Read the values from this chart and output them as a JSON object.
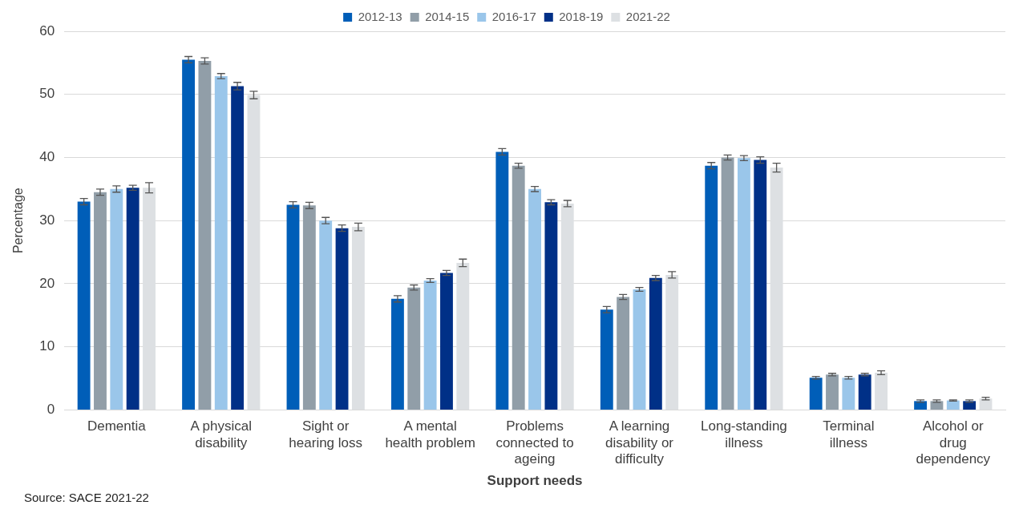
{
  "chart_data": {
    "type": "bar",
    "categories": [
      "Dementia",
      "A physical disability",
      "Sight or hearing loss",
      "A mental health problem",
      "Problems connected to ageing",
      "A learning disability or difficulty",
      "Long-standing illness",
      "Terminal illness",
      "Alcohol or drug dependency"
    ],
    "xlabel": "Support needs",
    "ylabel": "Percentage",
    "ylim": [
      0,
      60
    ],
    "yticks": [
      0,
      10,
      20,
      30,
      40,
      50,
      60
    ],
    "grid": "y",
    "legend": "top",
    "series": [
      {
        "name": "2012-13",
        "color": "#005eb8",
        "values": [
          33.0,
          55.5,
          32.5,
          17.6,
          40.9,
          15.9,
          38.7,
          5.1,
          1.4
        ],
        "errors": [
          0.5,
          0.5,
          0.5,
          0.5,
          0.5,
          0.5,
          0.5,
          0.2,
          0.2
        ]
      },
      {
        "name": "2014-15",
        "color": "#919ea8",
        "values": [
          34.5,
          55.3,
          32.4,
          19.4,
          38.7,
          17.9,
          40.0,
          5.6,
          1.4
        ],
        "errors": [
          0.5,
          0.5,
          0.5,
          0.4,
          0.4,
          0.4,
          0.4,
          0.2,
          0.2
        ]
      },
      {
        "name": "2016-17",
        "color": "#9ac6ea",
        "values": [
          35.0,
          52.9,
          30.0,
          20.5,
          35.0,
          19.1,
          39.9,
          5.1,
          1.5
        ],
        "errors": [
          0.5,
          0.4,
          0.5,
          0.3,
          0.4,
          0.3,
          0.4,
          0.2,
          0.1
        ]
      },
      {
        "name": "2018-19",
        "color": "#003087",
        "values": [
          35.2,
          51.3,
          28.8,
          21.7,
          32.9,
          20.9,
          39.6,
          5.6,
          1.4
        ],
        "errors": [
          0.4,
          0.6,
          0.5,
          0.4,
          0.4,
          0.4,
          0.5,
          0.2,
          0.2
        ]
      },
      {
        "name": "2021-22",
        "color": "#dde0e3",
        "values": [
          35.2,
          49.9,
          29.0,
          23.3,
          32.7,
          21.4,
          38.4,
          5.9,
          1.8
        ],
        "errors": [
          0.8,
          0.6,
          0.6,
          0.6,
          0.5,
          0.5,
          0.7,
          0.3,
          0.2
        ]
      }
    ],
    "annotations": [
      "Source: SACE 2021-22"
    ]
  }
}
